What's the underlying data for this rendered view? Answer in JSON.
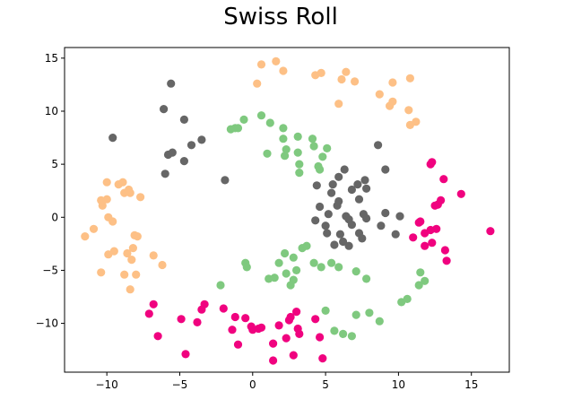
{
  "chart_data": {
    "type": "scatter",
    "title": "Swiss Roll",
    "xlabel": "",
    "ylabel": "",
    "xlim": [
      -12.9,
      17.6
    ],
    "ylim": [
      -14.6,
      16.0
    ],
    "xticks": [
      -10,
      -5,
      0,
      5,
      10,
      15
    ],
    "yticks": [
      -10,
      -5,
      0,
      5,
      10,
      15
    ],
    "xtick_labels": [
      "−10",
      "−5",
      "0",
      "5",
      "10",
      "15"
    ],
    "ytick_labels": [
      "−10",
      "−5",
      "0",
      "5",
      "10",
      "15"
    ],
    "grid": false,
    "legend": "none",
    "series": [
      {
        "color": "#fdc086",
        "points": [
          [
            0.6,
            14.4
          ],
          [
            1.6,
            14.7
          ],
          [
            2.1,
            13.8
          ],
          [
            0.3,
            12.6
          ],
          [
            4.3,
            13.4
          ],
          [
            4.7,
            13.6
          ],
          [
            6.1,
            13.0
          ],
          [
            6.4,
            13.7
          ],
          [
            7.0,
            12.8
          ],
          [
            8.7,
            11.6
          ],
          [
            9.6,
            12.7
          ],
          [
            10.8,
            13.1
          ],
          [
            9.4,
            10.5
          ],
          [
            9.6,
            10.9
          ],
          [
            10.7,
            10.1
          ],
          [
            11.2,
            9.0
          ],
          [
            10.8,
            8.7
          ],
          [
            5.9,
            10.7
          ],
          [
            -10.0,
            3.3
          ],
          [
            -8.9,
            3.3
          ],
          [
            -9.2,
            3.1
          ],
          [
            -8.5,
            2.6
          ],
          [
            -8.8,
            2.3
          ],
          [
            -8.4,
            2.3
          ],
          [
            -7.7,
            1.9
          ],
          [
            -10.0,
            1.7
          ],
          [
            -10.4,
            1.6
          ],
          [
            -10.3,
            1.1
          ],
          [
            -9.9,
            0.0
          ],
          [
            -9.6,
            -0.4
          ],
          [
            -10.9,
            -1.1
          ],
          [
            -11.5,
            -1.8
          ],
          [
            -8.1,
            -1.7
          ],
          [
            -7.9,
            -1.8
          ],
          [
            -8.2,
            -2.9
          ],
          [
            -9.5,
            -3.2
          ],
          [
            -8.6,
            -3.4
          ],
          [
            -9.9,
            -3.5
          ],
          [
            -6.8,
            -3.6
          ],
          [
            -8.3,
            -4.0
          ],
          [
            -6.2,
            -4.5
          ],
          [
            -10.4,
            -5.2
          ],
          [
            -8.8,
            -5.4
          ],
          [
            -8.0,
            -5.4
          ],
          [
            -8.4,
            -6.8
          ]
        ]
      },
      {
        "color": "#666666",
        "points": [
          [
            -5.6,
            12.6
          ],
          [
            -6.1,
            10.2
          ],
          [
            -4.7,
            9.2
          ],
          [
            -9.6,
            7.5
          ],
          [
            -3.5,
            7.3
          ],
          [
            -4.2,
            6.8
          ],
          [
            -5.5,
            6.1
          ],
          [
            -5.8,
            5.9
          ],
          [
            -4.7,
            5.3
          ],
          [
            -6.0,
            4.1
          ],
          [
            -1.9,
            3.5
          ],
          [
            8.6,
            6.8
          ],
          [
            9.1,
            4.5
          ],
          [
            6.3,
            4.5
          ],
          [
            5.9,
            3.8
          ],
          [
            5.5,
            3.1
          ],
          [
            4.4,
            3.0
          ],
          [
            7.2,
            3.1
          ],
          [
            7.7,
            3.5
          ],
          [
            7.8,
            2.7
          ],
          [
            6.8,
            2.6
          ],
          [
            5.4,
            2.3
          ],
          [
            5.9,
            1.5
          ],
          [
            7.3,
            1.7
          ],
          [
            5.8,
            1.1
          ],
          [
            4.6,
            1.0
          ],
          [
            5.2,
            0.3
          ],
          [
            6.4,
            0.1
          ],
          [
            7.6,
            0.3
          ],
          [
            6.6,
            -0.2
          ],
          [
            7.8,
            -0.1
          ],
          [
            9.1,
            0.4
          ],
          [
            10.1,
            0.1
          ],
          [
            4.3,
            -0.3
          ],
          [
            5.0,
            -0.8
          ],
          [
            6.8,
            -0.7
          ],
          [
            8.8,
            -0.8
          ],
          [
            5.1,
            -1.5
          ],
          [
            6.0,
            -1.6
          ],
          [
            7.3,
            -1.5
          ],
          [
            7.5,
            -2.0
          ],
          [
            9.8,
            -1.6
          ],
          [
            6.2,
            -2.3
          ],
          [
            5.6,
            -2.6
          ],
          [
            6.6,
            -2.7
          ]
        ]
      },
      {
        "color": "#7fc97f",
        "points": [
          [
            -0.6,
            9.2
          ],
          [
            0.6,
            9.6
          ],
          [
            1.2,
            8.9
          ],
          [
            -1.5,
            8.3
          ],
          [
            -1.2,
            8.4
          ],
          [
            -1.0,
            8.4
          ],
          [
            2.1,
            8.4
          ],
          [
            3.1,
            7.6
          ],
          [
            2.1,
            7.4
          ],
          [
            4.1,
            7.4
          ],
          [
            2.3,
            6.4
          ],
          [
            4.2,
            6.7
          ],
          [
            5.1,
            6.5
          ],
          [
            3.1,
            6.1
          ],
          [
            1.0,
            6.0
          ],
          [
            2.2,
            5.8
          ],
          [
            4.8,
            5.7
          ],
          [
            3.2,
            5.0
          ],
          [
            4.5,
            4.8
          ],
          [
            4.6,
            4.5
          ],
          [
            3.2,
            4.2
          ],
          [
            2.2,
            -3.4
          ],
          [
            3.4,
            -2.9
          ],
          [
            3.7,
            -2.7
          ],
          [
            2.8,
            -3.8
          ],
          [
            4.2,
            -4.3
          ],
          [
            1.8,
            -4.3
          ],
          [
            5.4,
            -4.3
          ],
          [
            4.7,
            -4.7
          ],
          [
            5.9,
            -4.7
          ],
          [
            -0.5,
            -4.3
          ],
          [
            -0.4,
            -4.7
          ],
          [
            2.3,
            -5.3
          ],
          [
            3.0,
            -5.0
          ],
          [
            7.1,
            -5.1
          ],
          [
            1.1,
            -5.8
          ],
          [
            1.5,
            -5.7
          ],
          [
            2.8,
            -5.9
          ],
          [
            2.6,
            -6.4
          ],
          [
            -2.2,
            -6.4
          ],
          [
            7.8,
            -5.8
          ],
          [
            11.5,
            -5.2
          ],
          [
            11.8,
            -6.0
          ],
          [
            11.4,
            -6.4
          ],
          [
            10.2,
            -8.0
          ],
          [
            10.6,
            -7.7
          ],
          [
            7.1,
            -9.2
          ],
          [
            8.0,
            -9.0
          ],
          [
            8.7,
            -9.8
          ],
          [
            5.6,
            -10.7
          ],
          [
            6.2,
            -11.0
          ],
          [
            6.8,
            -11.2
          ],
          [
            5.0,
            -8.8
          ]
        ]
      },
      {
        "color": "#f0027f",
        "points": [
          [
            12.3,
            5.2
          ],
          [
            12.2,
            5.0
          ],
          [
            13.1,
            3.6
          ],
          [
            14.3,
            2.2
          ],
          [
            12.9,
            1.6
          ],
          [
            12.7,
            1.2
          ],
          [
            12.5,
            1.1
          ],
          [
            11.5,
            -0.4
          ],
          [
            11.4,
            -0.5
          ],
          [
            12.6,
            -1.1
          ],
          [
            12.2,
            -1.2
          ],
          [
            16.3,
            -1.3
          ],
          [
            11.8,
            -1.5
          ],
          [
            11.0,
            -1.9
          ],
          [
            12.3,
            -2.4
          ],
          [
            11.8,
            -2.7
          ],
          [
            13.2,
            -3.1
          ],
          [
            13.3,
            -4.1
          ],
          [
            -6.8,
            -8.2
          ],
          [
            -3.3,
            -8.2
          ],
          [
            -2.0,
            -8.6
          ],
          [
            -3.5,
            -8.7
          ],
          [
            -7.1,
            -9.1
          ],
          [
            -0.5,
            -9.5
          ],
          [
            -1.2,
            -9.4
          ],
          [
            -4.9,
            -9.6
          ],
          [
            -3.8,
            -9.9
          ],
          [
            -0.1,
            -10.3
          ],
          [
            0.4,
            -10.5
          ],
          [
            -1.4,
            -10.6
          ],
          [
            0.6,
            -10.4
          ],
          [
            0.0,
            -10.6
          ],
          [
            -6.5,
            -11.2
          ],
          [
            -1.0,
            -12.0
          ],
          [
            -4.6,
            -12.9
          ],
          [
            3.0,
            -8.9
          ],
          [
            2.6,
            -9.4
          ],
          [
            2.5,
            -9.7
          ],
          [
            4.3,
            -9.6
          ],
          [
            1.8,
            -10.2
          ],
          [
            3.1,
            -10.5
          ],
          [
            3.2,
            -11.0
          ],
          [
            2.3,
            -11.4
          ],
          [
            1.4,
            -11.9
          ],
          [
            4.6,
            -11.3
          ],
          [
            1.4,
            -13.5
          ],
          [
            2.8,
            -13.0
          ],
          [
            4.8,
            -13.3
          ]
        ]
      }
    ]
  }
}
